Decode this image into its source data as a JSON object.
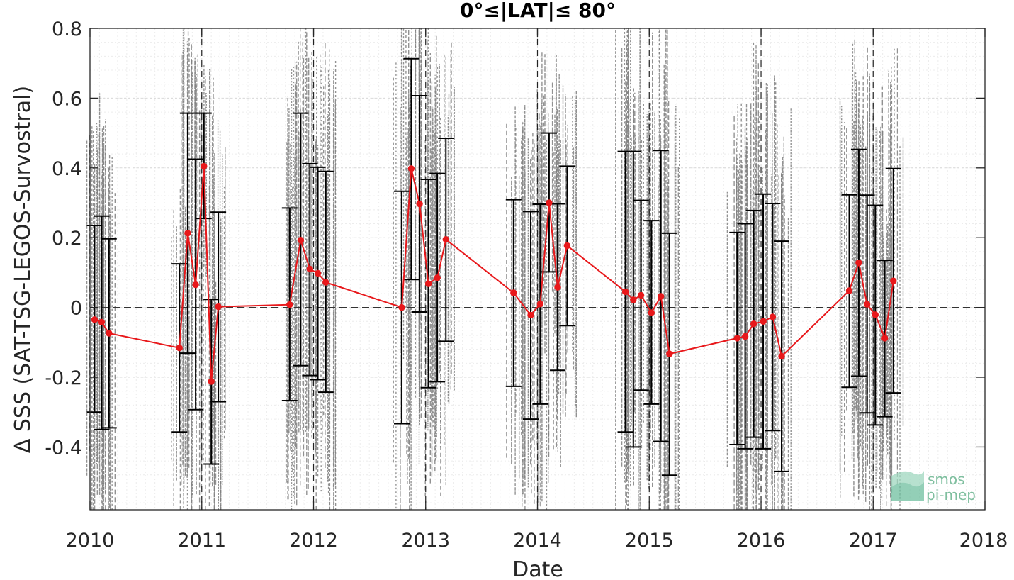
{
  "chart_data": {
    "type": "line",
    "title": "0°≤|LAT|≤ 80°",
    "xlabel": "Date",
    "ylabel": "Δ SSS (SAT-TSG-LEGOS-Survostral)",
    "xlim": [
      "2010-01-01",
      "2018-01-01"
    ],
    "ylim": [
      -0.58,
      0.8
    ],
    "x_ticks": [
      "2010",
      "2011",
      "2012",
      "2013",
      "2014",
      "2015",
      "2016",
      "2017",
      "2018"
    ],
    "y_ticks": [
      "-0.4",
      "-0.2",
      "0",
      "0.2",
      "0.4",
      "0.6",
      "0.8"
    ],
    "grid": true,
    "reference_line_y": 0,
    "year_boundary_lines": [
      "2011-01-01",
      "2012-01-01",
      "2013-01-01",
      "2014-01-01",
      "2015-01-01",
      "2016-01-01",
      "2017-01-01"
    ],
    "series": [
      {
        "color": "#e8181b",
        "error_bar_color": "#000000",
        "points": [
          {
            "date": "2010-01-16",
            "y": -0.035,
            "low": -0.3,
            "high": 0.235
          },
          {
            "date": "2010-02-08",
            "y": -0.042,
            "low": -0.35,
            "high": 0.262
          },
          {
            "date": "2010-03-04",
            "y": -0.074,
            "low": -0.345,
            "high": 0.197
          },
          {
            "date": "2010-10-20",
            "y": -0.116,
            "low": -0.357,
            "high": 0.125
          },
          {
            "date": "2010-11-16",
            "y": 0.213,
            "low": -0.131,
            "high": 0.557
          },
          {
            "date": "2010-12-12",
            "y": 0.065,
            "low": -0.293,
            "high": 0.425
          },
          {
            "date": "2011-01-08",
            "y": 0.405,
            "low": 0.255,
            "high": 0.557
          },
          {
            "date": "2011-02-01",
            "y": -0.212,
            "low": -0.449,
            "high": 0.023
          },
          {
            "date": "2011-02-24",
            "y": 0.002,
            "low": -0.27,
            "high": 0.273
          },
          {
            "date": "2011-10-15",
            "y": 0.008,
            "low": -0.267,
            "high": 0.285
          },
          {
            "date": "2011-11-20",
            "y": 0.193,
            "low": -0.167,
            "high": 0.557
          },
          {
            "date": "2011-12-20",
            "y": 0.11,
            "low": -0.195,
            "high": 0.412
          },
          {
            "date": "2012-01-15",
            "y": 0.098,
            "low": -0.207,
            "high": 0.402
          },
          {
            "date": "2012-02-10",
            "y": 0.072,
            "low": -0.243,
            "high": 0.39
          },
          {
            "date": "2012-10-15",
            "y": 0.0,
            "low": -0.333,
            "high": 0.333
          },
          {
            "date": "2012-11-15",
            "y": 0.398,
            "low": 0.08,
            "high": 0.713
          },
          {
            "date": "2012-12-12",
            "y": 0.297,
            "low": -0.013,
            "high": 0.607
          },
          {
            "date": "2013-01-10",
            "y": 0.068,
            "low": -0.23,
            "high": 0.367
          },
          {
            "date": "2013-02-08",
            "y": 0.085,
            "low": -0.213,
            "high": 0.384
          },
          {
            "date": "2013-03-08",
            "y": 0.195,
            "low": -0.097,
            "high": 0.485
          },
          {
            "date": "2013-10-15",
            "y": 0.042,
            "low": -0.226,
            "high": 0.309
          },
          {
            "date": "2013-12-10",
            "y": -0.022,
            "low": -0.32,
            "high": 0.275
          },
          {
            "date": "2014-01-10",
            "y": 0.01,
            "low": -0.277,
            "high": 0.296
          },
          {
            "date": "2014-02-08",
            "y": 0.3,
            "low": 0.102,
            "high": 0.5
          },
          {
            "date": "2014-03-08",
            "y": 0.058,
            "low": -0.18,
            "high": 0.297
          },
          {
            "date": "2014-04-08",
            "y": 0.177,
            "low": -0.052,
            "high": 0.405
          },
          {
            "date": "2014-10-15",
            "y": 0.045,
            "low": -0.357,
            "high": 0.447
          },
          {
            "date": "2014-11-10",
            "y": 0.022,
            "low": -0.4,
            "high": 0.447
          },
          {
            "date": "2014-12-05",
            "y": 0.035,
            "low": -0.237,
            "high": 0.307
          },
          {
            "date": "2015-01-08",
            "y": -0.015,
            "low": -0.277,
            "high": 0.249
          },
          {
            "date": "2015-02-08",
            "y": 0.032,
            "low": -0.384,
            "high": 0.45
          },
          {
            "date": "2015-03-08",
            "y": -0.133,
            "low": -0.481,
            "high": 0.213
          },
          {
            "date": "2015-10-15",
            "y": -0.088,
            "low": -0.393,
            "high": 0.215
          },
          {
            "date": "2015-11-10",
            "y": -0.083,
            "low": -0.405,
            "high": 0.24
          },
          {
            "date": "2015-12-08",
            "y": -0.047,
            "low": -0.372,
            "high": 0.278
          },
          {
            "date": "2016-01-08",
            "y": -0.04,
            "low": -0.405,
            "high": 0.325
          },
          {
            "date": "2016-02-08",
            "y": -0.027,
            "low": -0.353,
            "high": 0.298
          },
          {
            "date": "2016-03-08",
            "y": -0.14,
            "low": -0.47,
            "high": 0.19
          },
          {
            "date": "2016-10-15",
            "y": 0.048,
            "low": -0.229,
            "high": 0.323
          },
          {
            "date": "2016-11-15",
            "y": 0.128,
            "low": -0.197,
            "high": 0.453
          },
          {
            "date": "2016-12-12",
            "y": 0.009,
            "low": -0.302,
            "high": 0.322
          },
          {
            "date": "2017-01-08",
            "y": -0.021,
            "low": -0.337,
            "high": 0.293
          },
          {
            "date": "2017-02-08",
            "y": -0.088,
            "low": -0.313,
            "high": 0.135
          },
          {
            "date": "2017-03-08",
            "y": 0.076,
            "low": -0.245,
            "high": 0.398
          }
        ]
      }
    ]
  },
  "logo": {
    "line1": "smos",
    "line2": "pi-mep"
  },
  "colors": {
    "series_line": "#e8181b",
    "error_bars": "#000000",
    "background_samples": "#808080",
    "grid": "#d9d9d9",
    "logo": "#7fbf9f"
  }
}
